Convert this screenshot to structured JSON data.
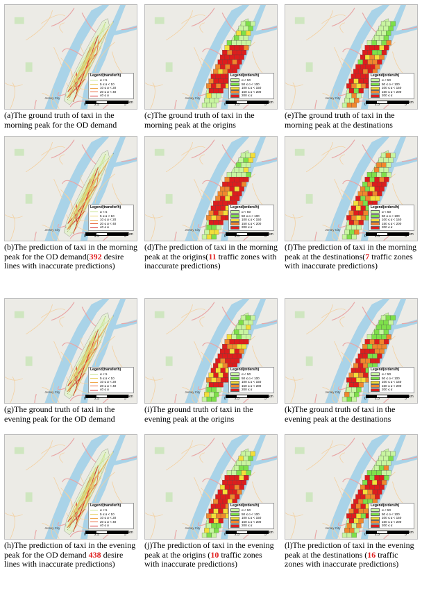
{
  "legend_od": {
    "title": "Legend(transfer/h)",
    "items": [
      {
        "label": "α < 5",
        "color": "#c6e38a"
      },
      {
        "label": "5 ≤ α < 10",
        "color": "#e9d36b"
      },
      {
        "label": "10 ≤ α < 20",
        "color": "#f0a84c"
      },
      {
        "label": "20 ≤ α < 40",
        "color": "#e8663a"
      },
      {
        "label": "40 ≤ α",
        "color": "#d21f1f"
      }
    ]
  },
  "legend_orders": {
    "title": "Legend(orders/h)",
    "items": [
      {
        "label": "α < 50",
        "color": "#c8f5a0"
      },
      {
        "label": "50 ≤ α < 100",
        "color": "#7ee04a"
      },
      {
        "label": "100 ≤ α < 150",
        "color": "#f3df3a"
      },
      {
        "label": "150 ≤ α < 200",
        "color": "#f0872d"
      },
      {
        "label": "200 ≤ α",
        "color": "#dd1d1d"
      }
    ]
  },
  "scale": {
    "t0": "0",
    "t1": "2.5",
    "t2": "5",
    "unit": "km"
  },
  "map_labels": {
    "jersey_city": "Jersey City"
  },
  "panels": [
    {
      "id": "a",
      "type": "od",
      "caption": "(a)The ground truth of taxi in the morning peak for the OD demand"
    },
    {
      "id": "c",
      "type": "zone",
      "caption": "(c)The ground truth of taxi in the morning peak at the origins"
    },
    {
      "id": "e",
      "type": "zone",
      "caption": "(e)The ground truth of taxi in the morning peak at the destinations"
    },
    {
      "id": "b",
      "type": "od",
      "caption_pre": "(b)The prediction of taxi in the morning peak for the OD demand(",
      "highlight": "392",
      "caption_post": " desire lines with inaccurate predictions)"
    },
    {
      "id": "d",
      "type": "zone",
      "caption_pre": "(d)The prediction of taxi in the morning peak at the origins(",
      "highlight": "11",
      "caption_post": " traffic zones with inaccurate predictions)"
    },
    {
      "id": "f",
      "type": "zone",
      "caption_pre": "(f)The prediction of taxi in the morning peak at the destinations(",
      "highlight": "7",
      "caption_post": " traffic zones with inaccurate predictions)"
    },
    {
      "id": "g",
      "type": "od",
      "caption": "(g)The ground truth of taxi in the evening peak for the OD demand"
    },
    {
      "id": "i",
      "type": "zone",
      "caption": "(i)The ground truth of taxi in the evening peak at the origins"
    },
    {
      "id": "k",
      "type": "zone",
      "caption": "(k)The ground truth of taxi in the evening peak at the destinations"
    },
    {
      "id": "h",
      "type": "od",
      "caption_pre": "(h)The prediction of taxi in the evening peak for the OD demand ",
      "highlight": "438",
      "caption_post": " desire lines with inaccurate predictions)"
    },
    {
      "id": "j",
      "type": "zone",
      "caption_pre": "(j)The prediction of taxi in the evening peak at the origins (",
      "highlight": "10",
      "caption_post": " traffic zones with inaccurate predictions)"
    },
    {
      "id": "l",
      "type": "zone",
      "caption_pre": "(l)The prediction of taxi in the evening peak at the destinations (",
      "highlight": "16",
      "caption_post": " traffic zones with inaccurate predictions)"
    }
  ]
}
